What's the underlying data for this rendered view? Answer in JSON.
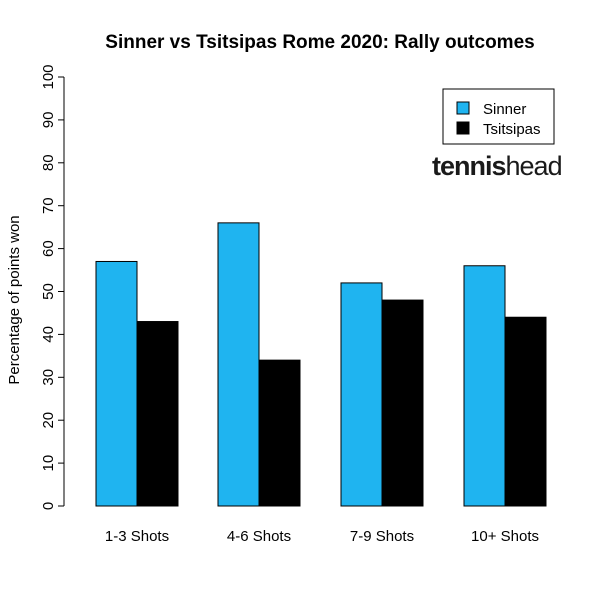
{
  "chart_data": {
    "type": "bar",
    "title": "Sinner vs Tsitsipas Rome 2020: Rally outcomes",
    "xlabel": "",
    "ylabel": "Percentage of points won",
    "categories": [
      "1-3 Shots",
      "4-6 Shots",
      "7-9 Shots",
      "10+ Shots"
    ],
    "series": [
      {
        "name": "Sinner",
        "color": "#1fb4f0",
        "values": [
          57,
          66,
          52,
          56
        ]
      },
      {
        "name": "Tsitsipas",
        "color": "#000000",
        "values": [
          43,
          34,
          48,
          44
        ]
      }
    ],
    "ylim": [
      0,
      100
    ],
    "yticks": [
      "0",
      "10",
      "20",
      "30",
      "40",
      "50",
      "60",
      "70",
      "80",
      "90",
      "100"
    ],
    "grid": false,
    "legend_position": "top-right"
  },
  "logo": {
    "bold": "tennis",
    "light": "head"
  }
}
